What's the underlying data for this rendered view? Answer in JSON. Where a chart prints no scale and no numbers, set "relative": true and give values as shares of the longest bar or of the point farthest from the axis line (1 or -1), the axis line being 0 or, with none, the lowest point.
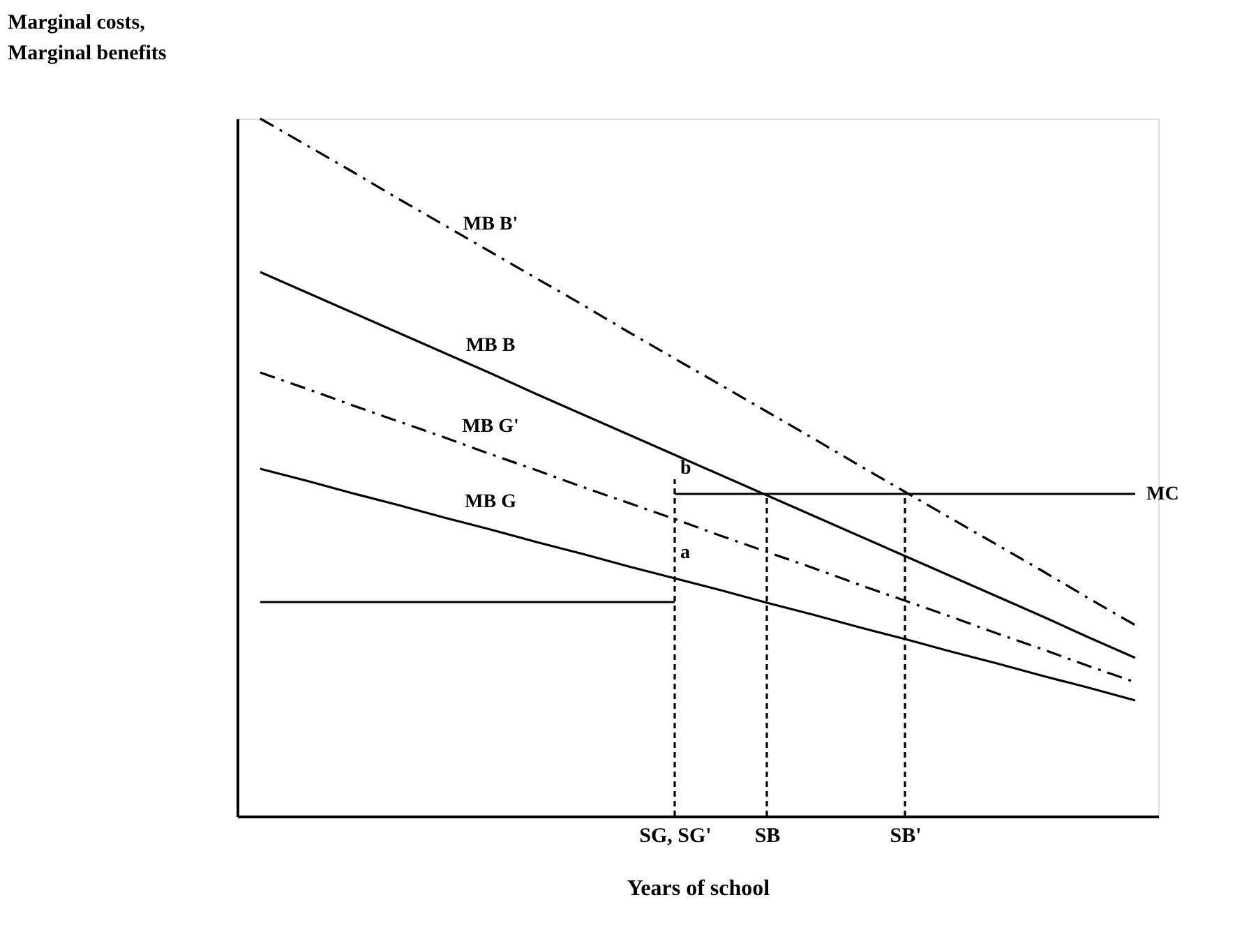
{
  "chart_data": {
    "type": "line",
    "relative": true,
    "xlabel": "Years of school",
    "ylabel": "Marginal costs,\nMarginal  benefits",
    "marker": "none",
    "categories": [
      null,
      null,
      null,
      null,
      null,
      null,
      null,
      null,
      null,
      "SG, SG'",
      null,
      "SB",
      null,
      null,
      "SB'",
      null,
      null,
      null,
      null,
      null
    ],
    "series": [
      {
        "name": "MB B'",
        "color": "#000000",
        "line_style": "dashed",
        "values": [
          1,
          0.962,
          0.924,
          0.885,
          0.847,
          0.809,
          0.771,
          0.733,
          0.694,
          0.656,
          0.618,
          0.58,
          0.542,
          0.503,
          0.465,
          0.427,
          0.389,
          0.351,
          0.312,
          0.274
        ]
      },
      {
        "name": "MB B",
        "color": "#000000",
        "line_style": "solid",
        "values": [
          0.78,
          0.751,
          0.722,
          0.693,
          0.664,
          0.635,
          0.605,
          0.576,
          0.547,
          0.518,
          0.489,
          0.46,
          0.431,
          0.402,
          0.373,
          0.344,
          0.315,
          0.286,
          0.256,
          0.227
        ]
      },
      {
        "name": "MB G'",
        "color": "#000000",
        "line_style": "dashed",
        "values": [
          0.636,
          0.613,
          0.589,
          0.566,
          0.543,
          0.519,
          0.496,
          0.472,
          0.449,
          0.426,
          0.402,
          0.379,
          0.356,
          0.332,
          0.309,
          0.286,
          0.262,
          0.239,
          0.215,
          0.192
        ]
      },
      {
        "name": "MB G",
        "color": "#000000",
        "line_style": "solid",
        "values": [
          0.498,
          0.481,
          0.463,
          0.446,
          0.428,
          0.411,
          0.393,
          0.376,
          0.358,
          0.341,
          0.324,
          0.306,
          0.289,
          0.271,
          0.254,
          0.236,
          0.219,
          0.201,
          0.184,
          0.166
        ]
      },
      {
        "color": "#000000",
        "line_style": "solid",
        "values": [
          0.307,
          0.307,
          0.307,
          0.307,
          0.307,
          0.307,
          0.307,
          0.307,
          0.307,
          0.307,
          null,
          null,
          null,
          null,
          null,
          null,
          null,
          null,
          null,
          null
        ]
      },
      {
        "name": "MC",
        "color": "#000000",
        "line_style": "solid",
        "values": [
          null,
          null,
          null,
          null,
          null,
          null,
          null,
          null,
          null,
          0.462,
          0.462,
          0.462,
          0.462,
          0.462,
          0.462,
          0.462,
          0.462,
          0.462,
          0.462,
          0.462
        ]
      },
      {
        "color": "#000000",
        "line_style": "dotted",
        "x": [
          "SG, SG'",
          "SG, SG'"
        ],
        "values": [
          0,
          0.483
        ]
      },
      {
        "color": "#000000",
        "line_style": "dotted",
        "x": [
          "SB",
          "SB"
        ],
        "values": [
          0,
          0.462
        ]
      },
      {
        "color": "#000000",
        "line_style": "dotted",
        "x": [
          "SB'",
          "SB'"
        ],
        "values": [
          0,
          0.462
        ]
      }
    ],
    "annotations": [
      {
        "text": "b",
        "x": "SG, SG'",
        "y": 0.483
      },
      {
        "text": "a",
        "x": "SG, SG'",
        "y": 0.362
      }
    ]
  }
}
